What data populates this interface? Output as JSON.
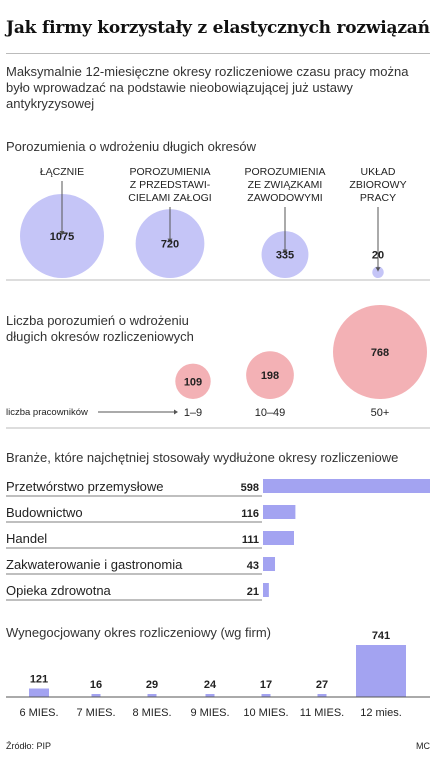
{
  "title": "Jak firmy korzystały z elastycznych rozwiązań",
  "subtitle": "Maksymalnie 12-miesięczne okresy rozliczeniowe czasu pracy można było wprowadzać na podstawie nieobowiązującej już ustawy antykryzysowej",
  "source": "Źródło: PIP",
  "author": "MC",
  "colors": {
    "purple": "#c5c5f7",
    "purple_dark": "#a3a3f1",
    "pink": "#f3b1b5",
    "pink_dark": "#ea989e",
    "axis": "#555555"
  },
  "chart_data": [
    {
      "type": "bubble",
      "title": "Porozumienia o wdrożeniu długich okresów",
      "categories": [
        [
          "ŁĄCZNIE"
        ],
        [
          "POROZUMIENIA",
          "Z PRZEDSTAWI-",
          "CIELAMI ZAŁOGI"
        ],
        [
          "POROZUMIENIA",
          "ZE ZWIĄZKAMI",
          "ZAWODOWYMI"
        ],
        [
          "UKŁAD",
          "ZBIOROWY",
          "PRACY"
        ]
      ],
      "values": [
        1075,
        720,
        335,
        20
      ]
    },
    {
      "type": "bubble",
      "title": [
        "Liczba porozumień o wdrożeniu",
        "długich okresów rozliczeniowych"
      ],
      "xlabel": "liczba pracowników",
      "categories": [
        "1–9",
        "10–49",
        "50+"
      ],
      "values": [
        109,
        198,
        768
      ]
    },
    {
      "type": "bar",
      "orientation": "horizontal",
      "title": "Branże, które najchętniej stosowały wydłużone okresy rozliczeniowe",
      "categories": [
        "Przetwórstwo przemysłowe",
        "Budownictwo",
        "Handel",
        "Zakwaterowanie i gastronomia",
        "Opieka zdrowotna"
      ],
      "values": [
        598,
        116,
        111,
        43,
        21
      ]
    },
    {
      "type": "bar",
      "title": "Wynegocjowany okres rozliczeniowy (wg firm)",
      "categories": [
        "6 MIES.",
        "7 MIES.",
        "8 MIES.",
        "9 MIES.",
        "10 MIES.",
        "11 MIES.",
        "12 mies."
      ],
      "values": [
        121,
        16,
        29,
        24,
        17,
        27,
        741
      ]
    }
  ]
}
